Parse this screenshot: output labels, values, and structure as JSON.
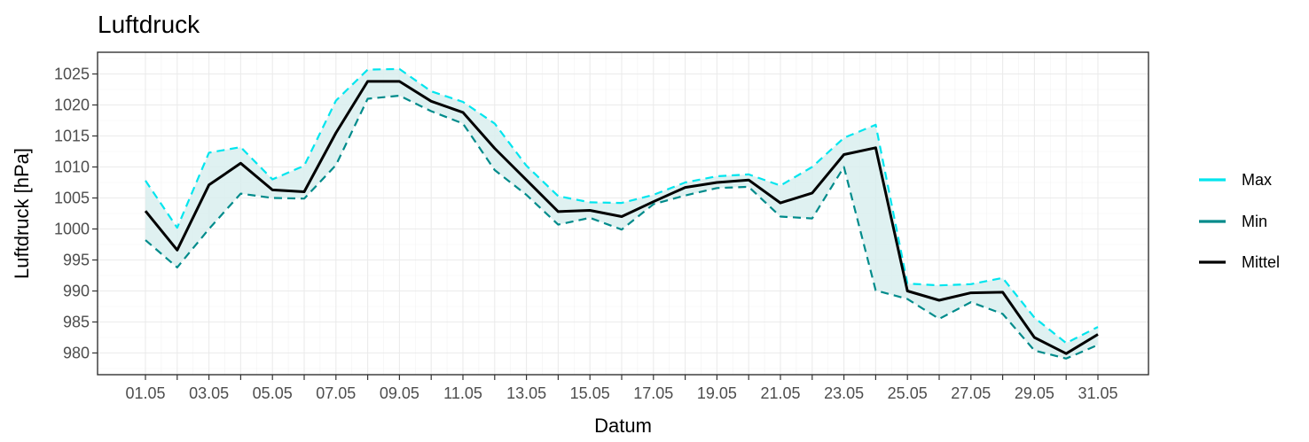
{
  "chart_data": {
    "type": "line",
    "title": "Luftdruck",
    "xlabel": "Datum",
    "ylabel": "Luftdruck [hPa]",
    "ylim": [
      976.5,
      1028.5
    ],
    "yticks": [
      980,
      985,
      990,
      995,
      1000,
      1005,
      1010,
      1015,
      1020,
      1025
    ],
    "xticks": [
      "01.05",
      "03.05",
      "05.05",
      "07.05",
      "09.05",
      "11.05",
      "13.05",
      "15.05",
      "17.05",
      "19.05",
      "21.05",
      "23.05",
      "25.05",
      "27.05",
      "29.05",
      "31.05"
    ],
    "x": [
      "01.05",
      "02.05",
      "03.05",
      "04.05",
      "05.05",
      "06.05",
      "07.05",
      "08.05",
      "09.05",
      "10.05",
      "11.05",
      "12.05",
      "13.05",
      "14.05",
      "15.05",
      "16.05",
      "17.05",
      "18.05",
      "19.05",
      "20.05",
      "21.05",
      "22.05",
      "23.05",
      "24.05",
      "25.05",
      "26.05",
      "27.05",
      "28.05",
      "29.05",
      "30.05",
      "31.05"
    ],
    "grid": true,
    "legend_position": "right",
    "series": [
      {
        "name": "Max",
        "color": "#00e5ee",
        "linestyle": "dashed",
        "values": [
          1007.8,
          1000.2,
          1012.3,
          1013.2,
          1008.0,
          1010.2,
          1020.7,
          1025.7,
          1025.8,
          1022.2,
          1020.5,
          1017.0,
          1010.2,
          1005.3,
          1004.3,
          1004.2,
          1005.5,
          1007.5,
          1008.5,
          1008.8,
          1007.0,
          1010.0,
          1014.7,
          1016.8,
          991.2,
          990.9,
          991.1,
          992.1,
          985.7,
          981.6,
          984.2
        ]
      },
      {
        "name": "Min",
        "color": "#008b8b",
        "linestyle": "dashed",
        "values": [
          998.2,
          993.8,
          1000.0,
          1005.7,
          1005.0,
          1004.9,
          1010.3,
          1021.0,
          1021.5,
          1019.0,
          1017.0,
          1009.5,
          1005.5,
          1000.7,
          1001.8,
          999.9,
          1004.0,
          1005.4,
          1006.6,
          1006.8,
          1002.0,
          1001.7,
          1010.0,
          990.1,
          988.7,
          985.5,
          988.2,
          986.3,
          980.4,
          979.1,
          981.3
        ]
      },
      {
        "name": "Mittel",
        "color": "#000000",
        "linestyle": "solid",
        "values": [
          1002.9,
          996.6,
          1007.1,
          1010.6,
          1006.3,
          1006.0,
          1015.5,
          1023.8,
          1023.8,
          1020.6,
          1018.8,
          1013.0,
          1007.9,
          1002.8,
          1003.0,
          1002.0,
          1004.4,
          1006.7,
          1007.5,
          1007.9,
          1004.2,
          1005.8,
          1012.0,
          1013.1,
          990.0,
          988.5,
          989.7,
          989.8,
          982.5,
          979.9,
          983.0
        ]
      }
    ],
    "band_fill_color": "#d9eeee",
    "legend_order": [
      "Max",
      "Min",
      "Mittel"
    ]
  }
}
